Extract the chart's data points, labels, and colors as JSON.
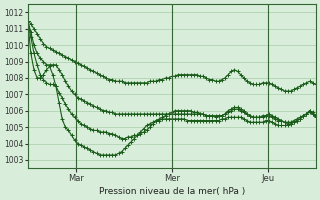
{
  "bg_color": "#d8eeda",
  "grid_color": "#aaccaa",
  "line_color": "#1a5c1a",
  "title": "Pression niveau de la mer( hPa )",
  "x_ticks": [
    48,
    144,
    240
  ],
  "x_tick_labels": [
    "Mar",
    "Mer",
    "Jeu"
  ],
  "ylim": [
    1002.5,
    1012.5
  ],
  "yticks": [
    1003,
    1004,
    1005,
    1006,
    1007,
    1008,
    1009,
    1010,
    1011,
    1012
  ],
  "total_hours": 288,
  "series": [
    [
      1011.5,
      1011.3,
      1011.0,
      1010.7,
      1010.4,
      1010.1,
      1009.9,
      1009.8,
      1009.7,
      1009.6,
      1009.5,
      1009.4,
      1009.3,
      1009.2,
      1009.1,
      1009.0,
      1008.9,
      1008.8,
      1008.7,
      1008.6,
      1008.5,
      1008.4,
      1008.3,
      1008.2,
      1008.1,
      1008.0,
      1007.9,
      1007.9,
      1007.8,
      1007.8,
      1007.8,
      1007.7,
      1007.7,
      1007.7,
      1007.7,
      1007.7,
      1007.7,
      1007.7,
      1007.7,
      1007.8,
      1007.8,
      1007.8,
      1007.9,
      1007.9,
      1008.0,
      1008.0,
      1008.1,
      1008.1,
      1008.2,
      1008.2,
      1008.2,
      1008.2,
      1008.2,
      1008.2,
      1008.2,
      1008.1,
      1008.1,
      1008.0,
      1007.9,
      1007.9,
      1007.8,
      1007.8,
      1007.9,
      1008.0,
      1008.2,
      1008.4,
      1008.5,
      1008.4,
      1008.2,
      1008.0,
      1007.8,
      1007.7,
      1007.6,
      1007.6,
      1007.6,
      1007.7,
      1007.7,
      1007.7,
      1007.6,
      1007.5,
      1007.4,
      1007.3,
      1007.2,
      1007.2,
      1007.2,
      1007.3,
      1007.4,
      1007.5,
      1007.6,
      1007.7,
      1007.8,
      1007.7,
      1007.6
    ],
    [
      1011.5,
      1010.8,
      1010.0,
      1009.5,
      1009.2,
      1009.0,
      1008.8,
      1008.8,
      1008.8,
      1008.8,
      1008.5,
      1008.2,
      1007.8,
      1007.5,
      1007.2,
      1007.0,
      1006.8,
      1006.7,
      1006.6,
      1006.5,
      1006.4,
      1006.3,
      1006.2,
      1006.1,
      1006.0,
      1006.0,
      1005.9,
      1005.9,
      1005.8,
      1005.8,
      1005.8,
      1005.8,
      1005.8,
      1005.8,
      1005.8,
      1005.8,
      1005.8,
      1005.8,
      1005.8,
      1005.8,
      1005.8,
      1005.8,
      1005.8,
      1005.8,
      1005.8,
      1005.8,
      1005.8,
      1005.8,
      1005.8,
      1005.8,
      1005.8,
      1005.8,
      1005.8,
      1005.8,
      1005.8,
      1005.8,
      1005.8,
      1005.7,
      1005.7,
      1005.7,
      1005.7,
      1005.7,
      1005.7,
      1005.8,
      1005.9,
      1006.0,
      1006.1,
      1006.1,
      1006.0,
      1005.9,
      1005.8,
      1005.7,
      1005.6,
      1005.6,
      1005.6,
      1005.6,
      1005.7,
      1005.7,
      1005.6,
      1005.5,
      1005.4,
      1005.4,
      1005.3,
      1005.3,
      1005.3,
      1005.4,
      1005.5,
      1005.6,
      1005.7,
      1005.8,
      1005.9,
      1005.8,
      1005.7
    ],
    [
      1011.5,
      1010.5,
      1009.5,
      1008.8,
      1008.2,
      1007.9,
      1007.7,
      1007.6,
      1007.6,
      1007.5,
      1007.1,
      1006.8,
      1006.4,
      1006.1,
      1005.8,
      1005.6,
      1005.4,
      1005.2,
      1005.1,
      1005.0,
      1004.9,
      1004.8,
      1004.8,
      1004.7,
      1004.7,
      1004.7,
      1004.6,
      1004.6,
      1004.5,
      1004.4,
      1004.3,
      1004.3,
      1004.4,
      1004.4,
      1004.5,
      1004.5,
      1004.6,
      1004.7,
      1004.8,
      1005.0,
      1005.2,
      1005.4,
      1005.5,
      1005.6,
      1005.7,
      1005.8,
      1005.9,
      1006.0,
      1006.0,
      1006.0,
      1006.0,
      1006.0,
      1006.0,
      1005.9,
      1005.9,
      1005.8,
      1005.8,
      1005.7,
      1005.7,
      1005.7,
      1005.6,
      1005.7,
      1005.7,
      1005.8,
      1006.0,
      1006.1,
      1006.2,
      1006.2,
      1006.1,
      1006.0,
      1005.8,
      1005.7,
      1005.6,
      1005.6,
      1005.6,
      1005.7,
      1005.7,
      1005.8,
      1005.7,
      1005.6,
      1005.5,
      1005.4,
      1005.3,
      1005.2,
      1005.2,
      1005.3,
      1005.4,
      1005.5,
      1005.7,
      1005.8,
      1006.0,
      1005.9,
      1005.7
    ],
    [
      1011.5,
      1009.5,
      1008.5,
      1008.0,
      1008.0,
      1008.2,
      1008.5,
      1008.7,
      1008.2,
      1007.5,
      1006.5,
      1005.5,
      1005.0,
      1004.8,
      1004.5,
      1004.2,
      1004.0,
      1003.9,
      1003.8,
      1003.7,
      1003.6,
      1003.5,
      1003.4,
      1003.3,
      1003.3,
      1003.3,
      1003.3,
      1003.3,
      1003.3,
      1003.4,
      1003.5,
      1003.7,
      1003.9,
      1004.1,
      1004.3,
      1004.5,
      1004.7,
      1004.9,
      1005.1,
      1005.2,
      1005.3,
      1005.4,
      1005.4,
      1005.5,
      1005.5,
      1005.5,
      1005.5,
      1005.5,
      1005.5,
      1005.5,
      1005.5,
      1005.4,
      1005.4,
      1005.4,
      1005.4,
      1005.4,
      1005.4,
      1005.4,
      1005.4,
      1005.4,
      1005.4,
      1005.4,
      1005.5,
      1005.5,
      1005.6,
      1005.6,
      1005.6,
      1005.6,
      1005.6,
      1005.5,
      1005.4,
      1005.3,
      1005.3,
      1005.3,
      1005.3,
      1005.3,
      1005.4,
      1005.4,
      1005.3,
      1005.2,
      1005.1,
      1005.1,
      1005.1,
      1005.1,
      1005.2,
      1005.3,
      1005.4,
      1005.5,
      1005.7,
      1005.8,
      1006.0,
      1005.8,
      1005.6
    ]
  ]
}
